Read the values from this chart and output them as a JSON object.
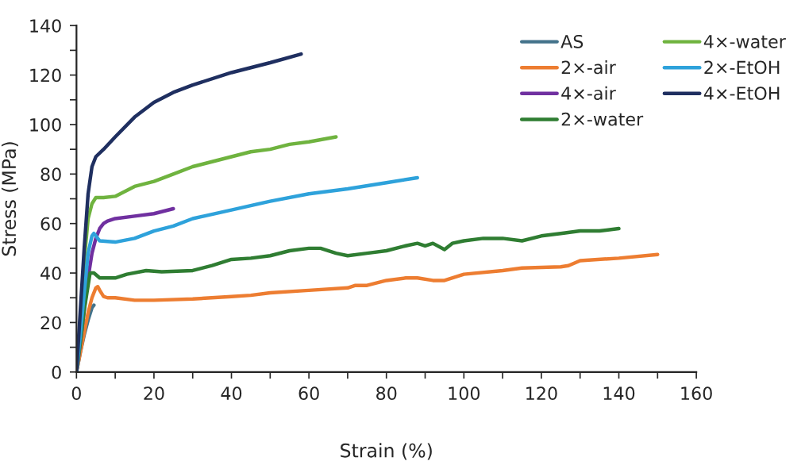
{
  "chart_data": {
    "type": "line",
    "xlabel": "Strain (%)",
    "ylabel": "Stress (MPa)",
    "xlim": [
      0,
      160
    ],
    "ylim": [
      0,
      140
    ],
    "xticks": [
      0,
      20,
      40,
      60,
      80,
      100,
      120,
      140,
      160
    ],
    "yticks": [
      0,
      20,
      40,
      60,
      80,
      100,
      120,
      140
    ],
    "grid": false,
    "legend": "top right",
    "marker": "none",
    "line_style": "solid",
    "series": [
      {
        "name": "AS",
        "color": "#44738b",
        "x": [
          0,
          1,
          2,
          3,
          4,
          4.5
        ],
        "values": [
          0,
          8,
          15,
          21,
          26,
          27
        ]
      },
      {
        "name": "2×-air",
        "color": "#ed7d31",
        "x": [
          0,
          1,
          2,
          3,
          4,
          5,
          5.5,
          6,
          7,
          8,
          10,
          15,
          20,
          30,
          40,
          45,
          50,
          60,
          70,
          72,
          75,
          80,
          85,
          88,
          92,
          95,
          100,
          110,
          115,
          125,
          127,
          130,
          140,
          150
        ],
        "values": [
          0,
          8,
          16,
          24,
          30,
          34,
          34.5,
          33,
          30.5,
          30,
          30,
          29,
          29,
          29.5,
          30.5,
          31,
          32,
          33,
          34,
          35,
          35,
          37,
          38,
          38,
          37,
          37,
          39.5,
          41,
          42,
          42.5,
          43,
          45,
          46,
          47.5
        ]
      },
      {
        "name": "4×-air",
        "color": "#7030a0",
        "x": [
          0,
          1,
          2,
          3,
          4,
          5,
          6,
          7,
          8,
          10,
          15,
          20,
          25
        ],
        "values": [
          0,
          12,
          25,
          38,
          48,
          54,
          58,
          60,
          61,
          62,
          63,
          64,
          66
        ]
      },
      {
        "name": "2×-water",
        "color": "#2f7d32",
        "x": [
          0,
          1,
          2,
          3,
          3.5,
          4.5,
          6,
          10,
          13,
          18,
          22,
          30,
          35,
          40,
          45,
          50,
          55,
          60,
          63,
          67,
          70,
          75,
          80,
          85,
          88,
          90,
          92,
          95,
          97,
          100,
          105,
          110,
          115,
          120,
          125,
          130,
          135,
          140
        ],
        "values": [
          0,
          12,
          25,
          35,
          40,
          40,
          38,
          38,
          39.5,
          41,
          40.5,
          41,
          43,
          45.5,
          46,
          47,
          49,
          50,
          50,
          48,
          47,
          48,
          49,
          51,
          52,
          51,
          52,
          49.5,
          52,
          53,
          54,
          54,
          53,
          55,
          56,
          57,
          57,
          58
        ]
      },
      {
        "name": "4×-water",
        "color": "#6fb33f",
        "x": [
          0,
          1,
          2,
          3,
          4,
          5,
          7,
          10,
          15,
          20,
          25,
          30,
          35,
          40,
          45,
          50,
          55,
          60,
          67
        ],
        "values": [
          0,
          20,
          45,
          62,
          68,
          70.5,
          70.5,
          71,
          75,
          77,
          80,
          83,
          85,
          87,
          89,
          90,
          92,
          93,
          95
        ]
      },
      {
        "name": "2×-EtOH",
        "color": "#2ea2db",
        "x": [
          0,
          1,
          2,
          3,
          4,
          4.5,
          6,
          10,
          15,
          20,
          25,
          30,
          40,
          50,
          60,
          70,
          80,
          88
        ],
        "values": [
          0,
          15,
          32,
          48,
          55,
          56,
          53,
          52.5,
          54,
          57,
          59,
          62,
          65.5,
          69,
          72,
          74,
          76.5,
          78.5
        ]
      },
      {
        "name": "4×-EtOH",
        "color": "#1f2f60",
        "x": [
          0,
          1,
          2,
          3,
          4,
          5,
          7,
          10,
          15,
          20,
          25,
          30,
          40,
          50,
          58
        ],
        "values": [
          0,
          25,
          50,
          72,
          83,
          87,
          90,
          95,
          103,
          109,
          113,
          116,
          121,
          125,
          128.5
        ]
      }
    ]
  }
}
